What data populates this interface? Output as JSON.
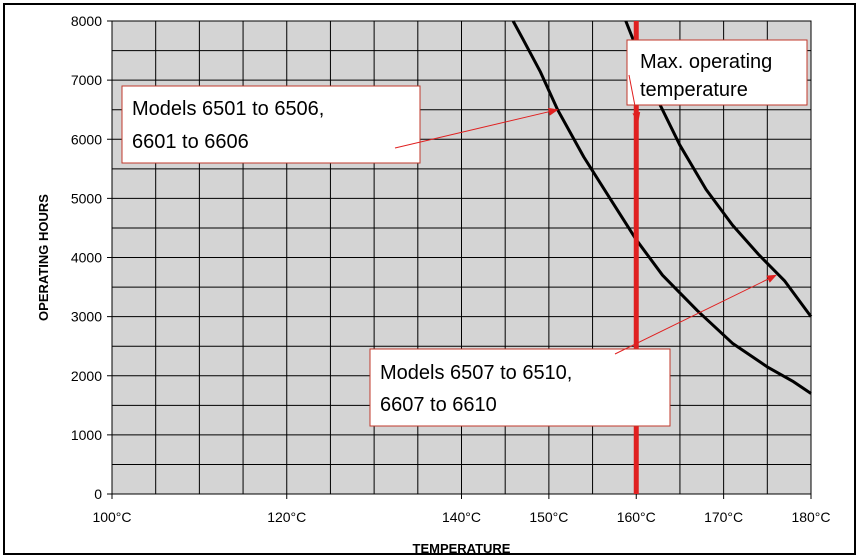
{
  "chart_data": {
    "type": "line",
    "xlabel": "TEMPERATURE",
    "ylabel": "OPERATING HOURS",
    "xlim": [
      100,
      180
    ],
    "ylim": [
      0,
      8000
    ],
    "x_ticks": [
      100,
      120,
      140,
      150,
      160,
      170,
      180
    ],
    "x_tick_labels": [
      "100°C",
      "120°C",
      "140°C",
      "150°C",
      "160°C",
      "170°C",
      "180°C"
    ],
    "y_ticks": [
      0,
      1000,
      2000,
      3000,
      4000,
      5000,
      6000,
      7000,
      8000
    ],
    "y_tick_labels": [
      "0",
      "1000",
      "2000",
      "3000",
      "4000",
      "5000",
      "6000",
      "7000",
      "8000"
    ],
    "grid": true,
    "grid_x_step": 5,
    "grid_y_step": 500,
    "plot_background": "#d4d4d4",
    "series": [
      {
        "color": "#000000",
        "points": [
          [
            145.9,
            8000
          ],
          [
            147,
            7700
          ],
          [
            149,
            7150
          ],
          [
            151,
            6500
          ],
          [
            154,
            5700
          ],
          [
            157,
            5000
          ],
          [
            160,
            4300
          ],
          [
            163,
            3700
          ],
          [
            167,
            3100
          ],
          [
            171,
            2550
          ],
          [
            175,
            2150
          ],
          [
            178,
            1900
          ],
          [
            180,
            1700
          ]
        ]
      },
      {
        "color": "#000000",
        "points": [
          [
            158.8,
            8000
          ],
          [
            160,
            7550
          ],
          [
            162,
            6800
          ],
          [
            165,
            5900
          ],
          [
            168,
            5150
          ],
          [
            171,
            4550
          ],
          [
            174,
            4050
          ],
          [
            177,
            3600
          ],
          [
            180,
            3000
          ]
        ]
      }
    ],
    "reference_line": {
      "x": 160,
      "color": "#e02020"
    },
    "annotations": [
      {
        "lines": [
          "Models   6501 to 6506,",
          "              6601 to 6606"
        ],
        "arrow_to": [
          151,
          6500
        ]
      },
      {
        "lines": [
          "Max. operating",
          "temperature"
        ],
        "arrow_to": [
          160.2,
          6300
        ]
      },
      {
        "lines": [
          "Models   6507 to 6510,",
          "              6607 to 6610"
        ],
        "arrow_to": [
          176,
          3700
        ]
      }
    ]
  }
}
